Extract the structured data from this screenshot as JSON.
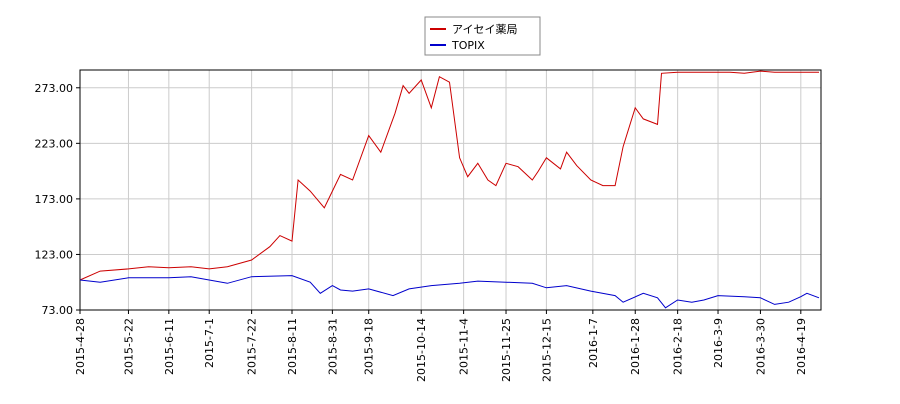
{
  "chart_data": {
    "type": "line",
    "series": [
      {
        "name": "アイセイ薬局",
        "color": "#cc0000",
        "x": [
          "2015-4-28",
          "2015-5-8",
          "2015-5-22",
          "2015-6-1",
          "2015-6-11",
          "2015-6-22",
          "2015-7-1",
          "2015-7-10",
          "2015-7-22",
          "2015-7-31",
          "2015-8-5",
          "2015-8-11",
          "2015-8-14",
          "2015-8-20",
          "2015-8-27",
          "2015-8-31",
          "2015-9-4",
          "2015-9-10",
          "2015-9-18",
          "2015-9-24",
          "2015-10-1",
          "2015-10-5",
          "2015-10-8",
          "2015-10-14",
          "2015-10-19",
          "2015-10-23",
          "2015-10-28",
          "2015-11-2",
          "2015-11-6",
          "2015-11-11",
          "2015-11-16",
          "2015-11-20",
          "2015-11-25",
          "2015-12-1",
          "2015-12-8",
          "2015-12-11",
          "2015-12-15",
          "2015-12-22",
          "2015-12-25",
          "2015-12-30",
          "2016-1-6",
          "2016-1-12",
          "2016-1-18",
          "2016-1-22",
          "2016-1-28",
          "2016-2-1",
          "2016-2-8",
          "2016-2-10",
          "2016-2-18",
          "2016-2-25",
          "2016-3-2",
          "2016-3-9",
          "2016-3-15",
          "2016-3-22",
          "2016-3-30",
          "2016-4-6",
          "2016-4-13",
          "2016-4-19",
          "2016-4-28"
        ],
        "values": [
          100,
          108,
          110,
          112,
          111,
          112,
          110,
          112,
          118,
          130,
          140,
          135,
          190,
          180,
          165,
          180,
          195,
          190,
          230,
          215,
          250,
          275,
          268,
          280,
          255,
          283,
          278,
          210,
          193,
          205,
          190,
          185,
          205,
          202,
          190,
          198,
          210,
          200,
          215,
          203,
          190,
          185,
          185,
          220,
          255,
          245,
          240,
          286,
          287,
          287,
          287,
          287,
          287,
          286,
          288,
          287,
          287,
          287,
          287
        ]
      },
      {
        "name": "TOPIX",
        "color": "#0000cc",
        "x": [
          "2015-4-28",
          "2015-5-8",
          "2015-5-22",
          "2015-6-11",
          "2015-6-22",
          "2015-7-1",
          "2015-7-10",
          "2015-7-22",
          "2015-8-11",
          "2015-8-20",
          "2015-8-25",
          "2015-8-31",
          "2015-9-4",
          "2015-9-10",
          "2015-9-18",
          "2015-9-30",
          "2015-10-8",
          "2015-10-19",
          "2015-11-2",
          "2015-11-11",
          "2015-11-25",
          "2015-12-8",
          "2015-12-15",
          "2015-12-25",
          "2016-1-6",
          "2016-1-18",
          "2016-1-22",
          "2016-2-1",
          "2016-2-8",
          "2016-2-12",
          "2016-2-18",
          "2016-2-25",
          "2016-3-2",
          "2016-3-9",
          "2016-3-22",
          "2016-3-30",
          "2016-4-6",
          "2016-4-13",
          "2016-4-19",
          "2016-4-22",
          "2016-4-28"
        ],
        "values": [
          100,
          98,
          102,
          102,
          103,
          100,
          97,
          103,
          104,
          98,
          88,
          95,
          91,
          90,
          92,
          86,
          92,
          95,
          97,
          99,
          98,
          97,
          93,
          95,
          90,
          86,
          80,
          88,
          84,
          75,
          82,
          80,
          82,
          86,
          85,
          84,
          78,
          80,
          85,
          88,
          84
        ]
      }
    ],
    "xlim": [
      "2015-4-28",
      "2016-4-29"
    ],
    "xticks": [
      "2015-4-28",
      "2015-5-22",
      "2015-6-11",
      "2015-7-1",
      "2015-7-22",
      "2015-8-11",
      "2015-8-31",
      "2015-9-18",
      "2015-10-14",
      "2015-11-4",
      "2015-11-25",
      "2015-12-15",
      "2016-1-7",
      "2016-1-28",
      "2016-2-18",
      "2016-3-9",
      "2016-3-30",
      "2016-4-19"
    ],
    "ylim": [
      73,
      289
    ],
    "yticks": [
      {
        "value": 73,
        "label": "73.00"
      },
      {
        "value": 123,
        "label": "123.00"
      },
      {
        "value": 173,
        "label": "173.00"
      },
      {
        "value": 223,
        "label": "223.00"
      },
      {
        "value": 273,
        "label": "273.00"
      }
    ],
    "grid": true
  }
}
